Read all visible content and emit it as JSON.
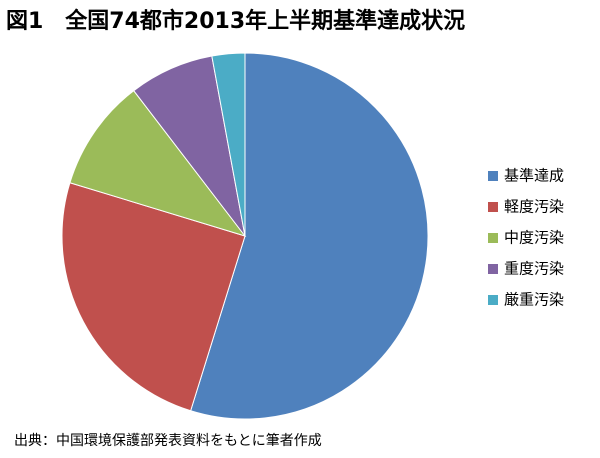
{
  "chart_data": {
    "type": "pie",
    "title": "図1　全国74都市2013年上半期基準達成状況",
    "categories": [
      "基準達成",
      "軽度汚染",
      "中度汚染",
      "重度汚染",
      "厳重汚染"
    ],
    "values": [
      54.8,
      24.9,
      9.9,
      7.5,
      2.9
    ],
    "colors": [
      "#4f81bd",
      "#c0504d",
      "#9bbb59",
      "#8064a2",
      "#4bacc6"
    ],
    "legend": "right",
    "source": "出典：中国環境保護部発表資料をもとに筆者作成"
  }
}
